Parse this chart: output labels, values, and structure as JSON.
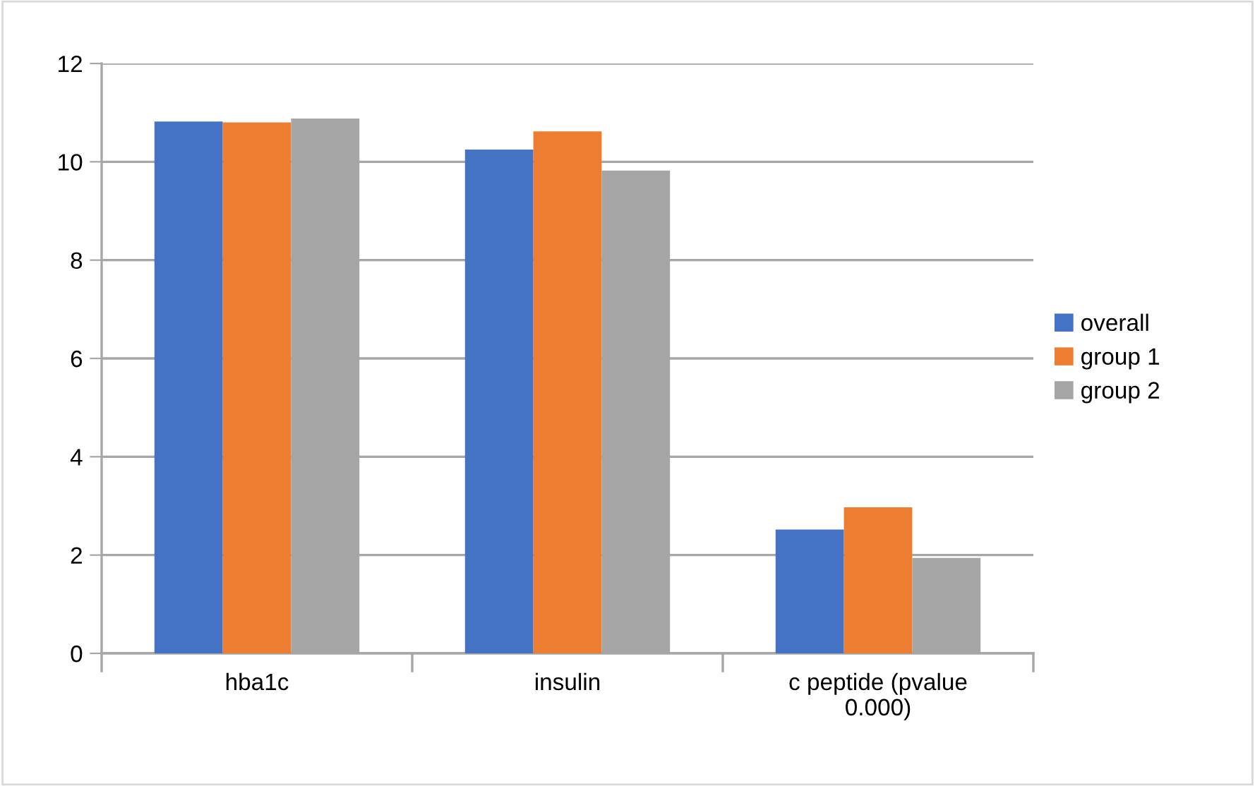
{
  "chart_data": {
    "type": "bar",
    "categories": [
      "hba1c",
      "insulin",
      "c peptide (pvalue\n0.000)"
    ],
    "series": [
      {
        "name": "overall",
        "color": "#4472c4",
        "values": [
          10.82,
          10.25,
          2.52
        ]
      },
      {
        "name": "group 1",
        "color": "#ed7d31",
        "values": [
          10.8,
          10.62,
          2.97
        ]
      },
      {
        "name": "group 2",
        "color": "#a5a5a5",
        "values": [
          10.88,
          9.82,
          1.94
        ]
      }
    ],
    "ylim": [
      0,
      12
    ],
    "yticks": [
      0,
      2,
      4,
      6,
      8,
      10,
      12
    ],
    "grid": "y",
    "legend": "right"
  }
}
